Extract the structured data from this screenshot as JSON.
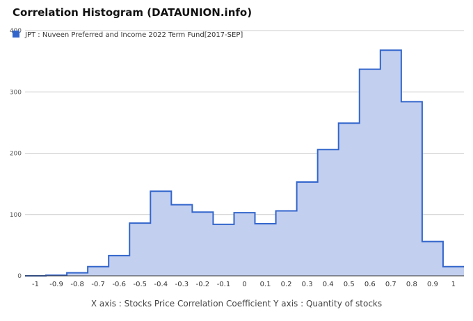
{
  "chart_data": {
    "type": "area",
    "title": "Correlation Histogram (DATAUNION.info)",
    "caption": "X axis : Stocks Price Correlation Coefficient  Y axis : Quantity of stocks",
    "legend": {
      "label": "JPT : Nuveen Preferred and Income 2022 Term Fund[2017-SEP]",
      "position": "top-left"
    },
    "series": [
      {
        "name": "JPT : Nuveen Preferred and Income 2022 Term Fund[2017-SEP]",
        "x": [
          -1,
          -0.9,
          -0.8,
          -0.7,
          -0.6,
          -0.5,
          -0.4,
          -0.3,
          -0.2,
          -0.1,
          0,
          0.1,
          0.2,
          0.3,
          0.4,
          0.5,
          0.6,
          0.7,
          0.8,
          0.9,
          1
        ],
        "values": [
          0,
          1,
          5,
          15,
          33,
          86,
          138,
          116,
          104,
          84,
          103,
          85,
          106,
          153,
          206,
          249,
          337,
          368,
          284,
          56,
          15
        ]
      }
    ],
    "xticks": [
      "-1",
      "-0.9",
      "-0.8",
      "-0.7",
      "-0.6",
      "-0.5",
      "-0.4",
      "-0.3",
      "-0.2",
      "-0.1",
      "0",
      "0.1",
      "0.2",
      "0.3",
      "0.4",
      "0.5",
      "0.6",
      "0.7",
      "0.8",
      "0.9",
      "1"
    ],
    "yticks": [
      "0",
      "100",
      "200",
      "300",
      "400"
    ],
    "ylim": [
      0,
      400
    ],
    "xlim": [
      -1,
      1
    ],
    "grid": true,
    "colors": {
      "line": "#3366cc",
      "fill": "#c3cfef",
      "grid": "#cccccc",
      "axis": "#333333"
    }
  }
}
